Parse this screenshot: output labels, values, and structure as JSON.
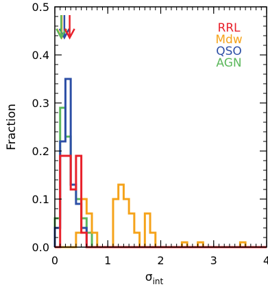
{
  "chart_data": {
    "type": "histogram",
    "xlabel": "σ",
    "xlabel_sub": "int",
    "ylabel": "Fraction",
    "xlim": [
      0,
      4
    ],
    "ylim": [
      0,
      0.5
    ],
    "x_ticks": [
      0,
      1,
      2,
      3,
      4
    ],
    "x_tick_labels": [
      "0",
      "1",
      "2",
      "3",
      "4"
    ],
    "y_ticks": [
      0.0,
      0.1,
      0.2,
      0.3,
      0.4,
      0.5
    ],
    "y_tick_labels": [
      "0.0",
      "0.1",
      "0.2",
      "0.3",
      "0.4",
      "0.5"
    ],
    "bin_width": 0.1,
    "bin_start": 0.0,
    "legend_position": "top-right",
    "series": [
      {
        "name": "RRL",
        "color": "#e8202a",
        "values": [
          0.0,
          0.19,
          0.19,
          0.12,
          0.19,
          0.03,
          0.0,
          0.0,
          0.0,
          0.0,
          0.0,
          0.0,
          0.0,
          0.0,
          0.0,
          0.0,
          0.0,
          0.0,
          0.0,
          0.0,
          0.0,
          0.0,
          0.0,
          0.0,
          0.0,
          0.0,
          0.0,
          0.0,
          0.0,
          0.0,
          0.0,
          0.0,
          0.0,
          0.0,
          0.0,
          0.0,
          0.0,
          0.0,
          0.0,
          0.0
        ],
        "arrow_x": 0.28
      },
      {
        "name": "Mdw",
        "color": "#f5a31a",
        "values": [
          0.0,
          0.0,
          0.0,
          0.0,
          0.03,
          0.1,
          0.07,
          0.03,
          0.0,
          0.0,
          0.0,
          0.1,
          0.13,
          0.1,
          0.07,
          0.03,
          0.0,
          0.07,
          0.03,
          0.0,
          0.0,
          0.0,
          0.0,
          0.0,
          0.01,
          0.0,
          0.0,
          0.01,
          0.0,
          0.0,
          0.0,
          0.0,
          0.0,
          0.0,
          0.0,
          0.01,
          0.0,
          0.0,
          0.0,
          0.0
        ],
        "arrow_x": 0.13
      },
      {
        "name": "QSO",
        "color": "#2d4fa6",
        "values": [
          0.04,
          0.22,
          0.35,
          0.13,
          0.09,
          0.04,
          0.0,
          0.0,
          0.0,
          0.0,
          0.0,
          0.0,
          0.0,
          0.0,
          0.0,
          0.0,
          0.0,
          0.0,
          0.0,
          0.0,
          0.0,
          0.0,
          0.0,
          0.0,
          0.0,
          0.0,
          0.0,
          0.0,
          0.0,
          0.0,
          0.0,
          0.0,
          0.0,
          0.0,
          0.0,
          0.0,
          0.0,
          0.0,
          0.0,
          0.0
        ],
        "arrow_x": 0.18
      },
      {
        "name": "AGN",
        "color": "#5cb85c",
        "values": [
          0.06,
          0.29,
          0.23,
          0.13,
          0.1,
          0.06,
          0.03,
          0.0,
          0.0,
          0.0,
          0.0,
          0.0,
          0.0,
          0.0,
          0.0,
          0.0,
          0.0,
          0.0,
          0.0,
          0.0,
          0.0,
          0.0,
          0.0,
          0.0,
          0.0,
          0.0,
          0.0,
          0.0,
          0.0,
          0.0,
          0.0,
          0.0,
          0.0,
          0.0,
          0.0,
          0.0,
          0.0,
          0.0,
          0.0,
          0.0
        ],
        "arrow_x": 0.12
      }
    ]
  }
}
